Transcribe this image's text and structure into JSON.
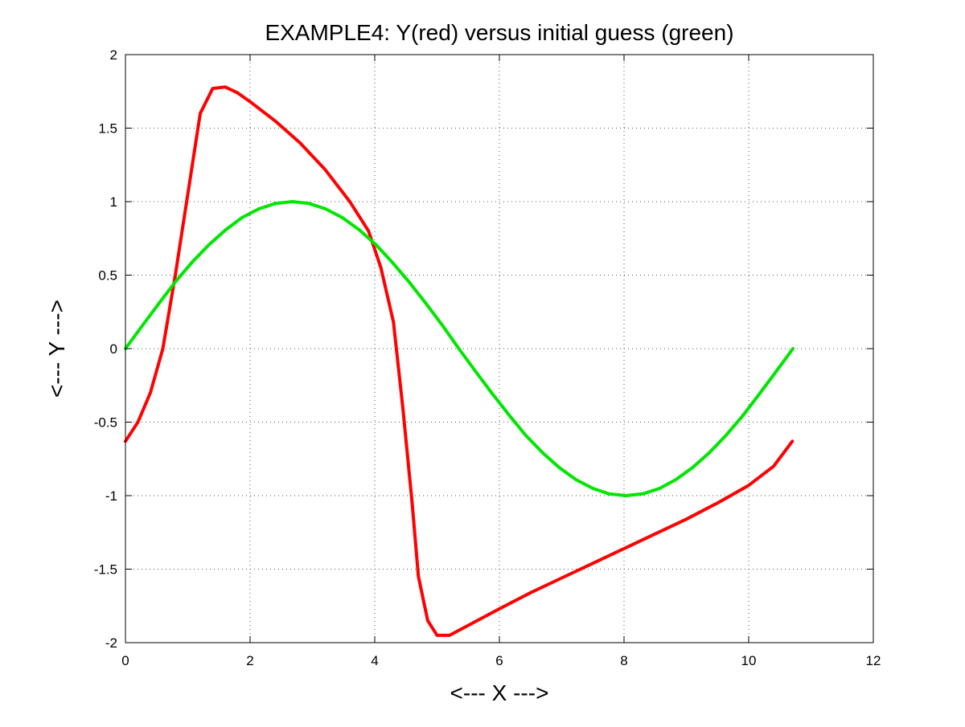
{
  "chart_data": {
    "type": "line",
    "title": "EXAMPLE4: Y(red) versus initial guess (green)",
    "xlabel": "<--- X --->",
    "ylabel": "<--- Y --->",
    "xlim": [
      0,
      12
    ],
    "ylim": [
      -2,
      2
    ],
    "xticks": [
      0,
      2,
      4,
      6,
      8,
      10,
      12
    ],
    "yticks": [
      -2,
      -1.5,
      -1,
      -0.5,
      0,
      0.5,
      1,
      1.5,
      2
    ],
    "xtick_labels": [
      "0",
      "2",
      "4",
      "6",
      "8",
      "10",
      "12"
    ],
    "ytick_labels": [
      "-2",
      "-1.5",
      "-1",
      "-0.5",
      "0",
      "0.5",
      "1",
      "1.5",
      "2"
    ],
    "grid": true,
    "legend": "none",
    "series": [
      {
        "color": "#ff0000",
        "x": [
          0,
          0.2,
          0.4,
          0.6,
          0.8,
          1.0,
          1.2,
          1.4,
          1.6,
          1.8,
          2.0,
          2.4,
          2.8,
          3.2,
          3.6,
          3.9,
          4.1,
          4.3,
          4.45,
          4.6,
          4.7,
          4.85,
          5.0,
          5.2,
          5.6,
          6.0,
          6.5,
          7.0,
          7.5,
          8.0,
          8.5,
          9.0,
          9.5,
          10.0,
          10.4,
          10.7
        ],
        "y": [
          -0.63,
          -0.5,
          -0.3,
          0.0,
          0.5,
          1.05,
          1.6,
          1.77,
          1.78,
          1.74,
          1.68,
          1.55,
          1.4,
          1.22,
          1.0,
          0.8,
          0.55,
          0.18,
          -0.4,
          -1.05,
          -1.55,
          -1.85,
          -1.95,
          -1.95,
          -1.86,
          -1.77,
          -1.66,
          -1.56,
          -1.46,
          -1.36,
          -1.26,
          -1.16,
          -1.05,
          -0.93,
          -0.8,
          -0.63
        ]
      },
      {
        "color": "#00e600",
        "x": [
          0,
          0.27,
          0.54,
          0.8,
          1.07,
          1.34,
          1.61,
          1.87,
          2.14,
          2.41,
          2.68,
          2.94,
          3.21,
          3.48,
          3.75,
          4.02,
          4.28,
          4.55,
          4.82,
          5.09,
          5.35,
          5.62,
          5.89,
          6.16,
          6.42,
          6.69,
          6.96,
          7.23,
          7.5,
          7.76,
          8.03,
          8.3,
          8.57,
          8.83,
          9.1,
          9.37,
          9.64,
          9.91,
          10.17,
          10.44,
          10.71
        ],
        "y": [
          0.0,
          0.156,
          0.309,
          0.454,
          0.588,
          0.707,
          0.809,
          0.891,
          0.951,
          0.988,
          1.0,
          0.988,
          0.951,
          0.891,
          0.809,
          0.707,
          0.588,
          0.454,
          0.309,
          0.156,
          0.0,
          -0.156,
          -0.309,
          -0.454,
          -0.588,
          -0.707,
          -0.809,
          -0.891,
          -0.951,
          -0.988,
          -1.0,
          -0.988,
          -0.951,
          -0.891,
          -0.809,
          -0.707,
          -0.588,
          -0.454,
          -0.309,
          -0.156,
          0.0
        ]
      }
    ]
  }
}
